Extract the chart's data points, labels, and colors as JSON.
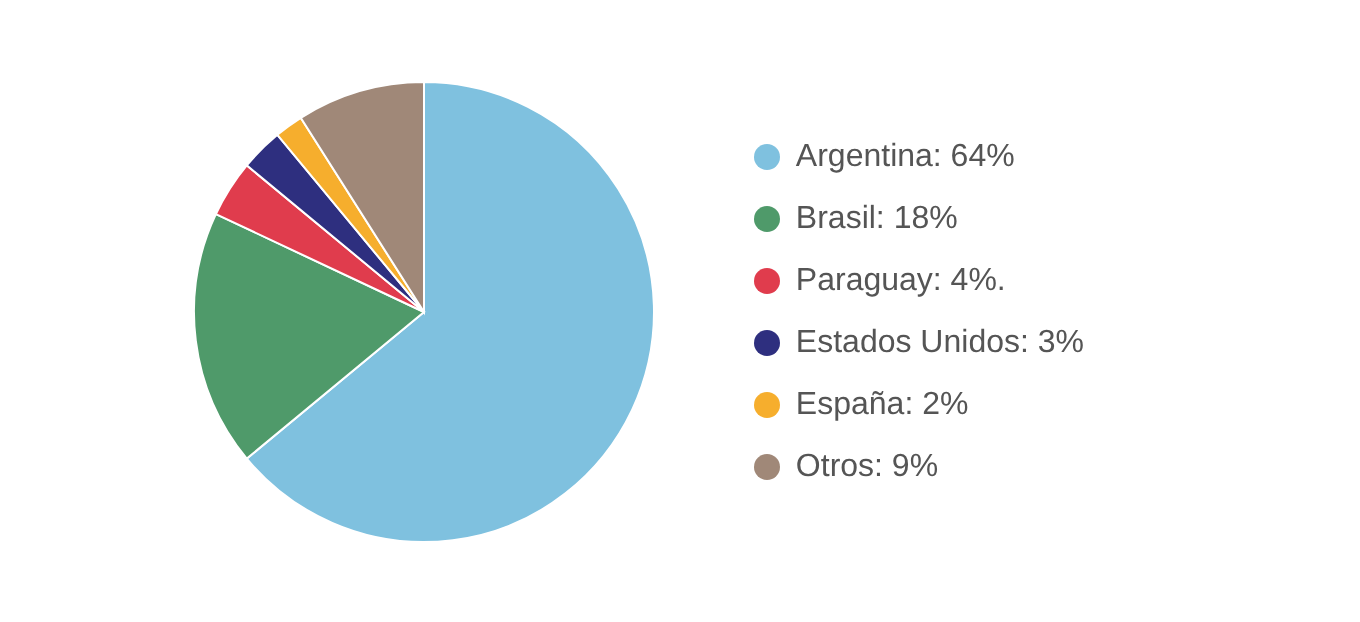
{
  "chart_data": {
    "type": "pie",
    "categories": [
      "Argentina: 64%",
      "Brasil: 18%",
      "Paraguay: 4%.",
      "Estados Unidos: 3%",
      "España: 2%",
      "Otros: 9%"
    ],
    "values": [
      64,
      18,
      4,
      3,
      2,
      9
    ],
    "colors": [
      "#7fc1df",
      "#4f9a6a",
      "#e03c4d",
      "#2e2f7f",
      "#f6ae2d",
      "#a08878"
    ],
    "legend": "right"
  }
}
